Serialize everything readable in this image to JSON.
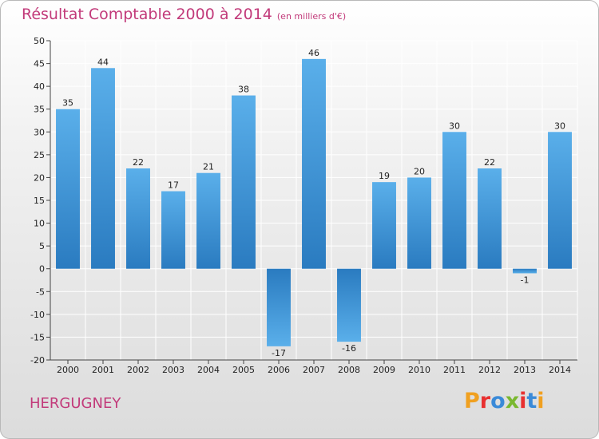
{
  "header": {
    "title": "Résultat Comptable 2000 à 2014",
    "subtitle": "(en milliers d'€)"
  },
  "footer": {
    "commune": "HERGUGNEY",
    "logo_letters": [
      "P",
      "r",
      "o",
      "x",
      "i",
      "t",
      "i"
    ],
    "logo_colors": [
      "#f0a020",
      "#e83030",
      "#3a8ad8",
      "#7ab830",
      "#e83030",
      "#3a8ad8",
      "#f0a020"
    ]
  },
  "colors": {
    "bar_light": "#5aafea",
    "bar_dark": "#2a7bc0",
    "grid": "#ffffff",
    "axis": "#444444",
    "title": "#c23a7a"
  },
  "chart_data": {
    "type": "bar",
    "title": "Résultat Comptable 2000 à 2014",
    "subtitle": "(en milliers d'€)",
    "xlabel": "",
    "ylabel": "",
    "categories": [
      "2000",
      "2001",
      "2002",
      "2003",
      "2004",
      "2005",
      "2006",
      "2007",
      "2008",
      "2009",
      "2010",
      "2011",
      "2012",
      "2013",
      "2014"
    ],
    "values": [
      35,
      44,
      22,
      17,
      21,
      38,
      -17,
      46,
      -16,
      19,
      20,
      30,
      22,
      -1,
      30
    ],
    "value_labels": [
      "35",
      "44",
      "22",
      "17",
      "21",
      "38",
      "-17",
      "46",
      "-16",
      "19",
      "20",
      "30",
      "22",
      "-1",
      "30"
    ],
    "ylim": [
      -20,
      50
    ],
    "yticks": [
      -20,
      -15,
      -10,
      -5,
      0,
      5,
      10,
      15,
      20,
      25,
      30,
      35,
      40,
      45,
      50
    ],
    "ytick_labels": [
      "-20",
      "-15",
      "-10",
      "-5",
      "0",
      "5",
      "10",
      "15",
      "20",
      "25",
      "30",
      "35",
      "40",
      "45",
      "50"
    ],
    "grid": true
  }
}
